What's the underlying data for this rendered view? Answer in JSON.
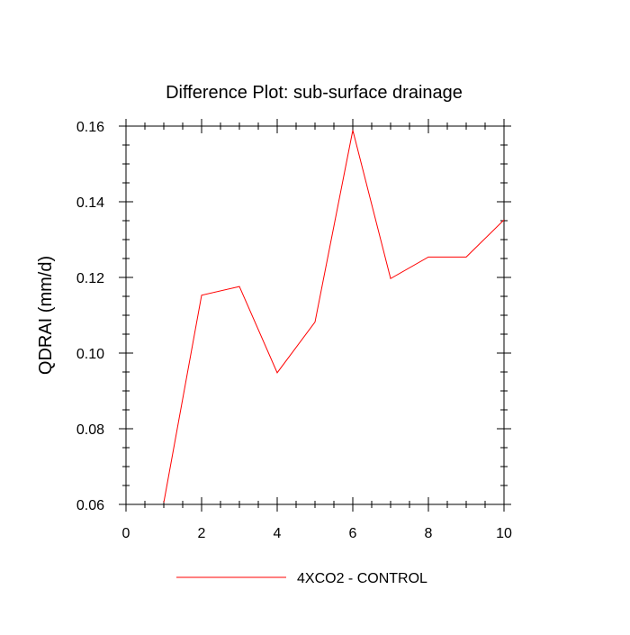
{
  "chart_data": {
    "type": "line",
    "title": "Difference Plot: sub-surface drainage",
    "xlabel": "",
    "ylabel": "QDRAI  (mm/d)",
    "xlim": [
      0,
      10
    ],
    "ylim": [
      0.06,
      0.16
    ],
    "xticks": [
      0,
      2,
      4,
      6,
      8,
      10
    ],
    "xtick_labels": [
      "0",
      "2",
      "4",
      "6",
      "8",
      "10"
    ],
    "yticks": [
      0.06,
      0.08,
      0.1,
      0.12,
      0.14,
      0.16
    ],
    "ytick_labels": [
      "0.06",
      "0.08",
      "0.10",
      "0.12",
      "0.14",
      "0.16"
    ],
    "grid": false,
    "legend_position": "bottom",
    "series": [
      {
        "name": "4XCO2 - CONTROL",
        "color": "#ff0000",
        "x": [
          1,
          2,
          3,
          4,
          5,
          6,
          7,
          8,
          9,
          10
        ],
        "values": [
          0.0605,
          0.1153,
          0.1176,
          0.0948,
          0.1082,
          0.1589,
          0.1197,
          0.1254,
          0.1254,
          0.1352
        ]
      }
    ]
  }
}
